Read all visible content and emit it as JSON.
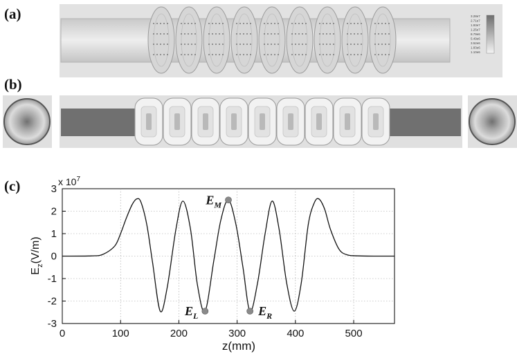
{
  "panels": {
    "a": {
      "label": "(a)",
      "legend_ticks": [
        "3.28e7",
        "2.71e7",
        "1.93e7",
        "1.25e7",
        "8.79e6",
        "5.49e6",
        "3.52e6",
        "1.83e6",
        "1.10e6"
      ]
    },
    "b": {
      "label": "(b)"
    },
    "c": {
      "label": "(c)"
    }
  },
  "chart_data": {
    "type": "line",
    "xlabel": "z(mm)",
    "ylabel": "E_z(V/m)",
    "y_multiplier": "x 10^7",
    "xlim": [
      0,
      570
    ],
    "ylim": [
      -3,
      3
    ],
    "xticks": [
      0,
      100,
      200,
      300,
      400,
      500
    ],
    "yticks": [
      3,
      2,
      1,
      0,
      -1,
      -2,
      -3
    ],
    "grid": true,
    "series": [
      {
        "x": [
          0,
          50,
          70,
          90,
          100,
          110,
          120,
          128,
          135,
          145,
          155,
          168,
          180,
          195,
          207,
          220,
          232,
          245,
          260,
          272,
          285,
          298,
          310,
          322,
          335,
          348,
          360,
          372,
          385,
          398,
          410,
          422,
          432,
          440,
          450,
          460,
          475,
          490,
          510,
          540,
          570
        ],
        "values": [
          0,
          0.01,
          0.08,
          0.45,
          1.0,
          1.7,
          2.3,
          2.55,
          2.4,
          1.4,
          -0.3,
          -2.45,
          -1.4,
          1.2,
          2.45,
          1.2,
          -1.3,
          -2.45,
          -0.2,
          1.6,
          2.5,
          1.4,
          -0.5,
          -2.45,
          -1.2,
          1.0,
          2.45,
          1.2,
          -1.2,
          -2.45,
          -1.2,
          1.4,
          2.35,
          2.55,
          2.1,
          1.2,
          0.3,
          0.05,
          0.01,
          0,
          0
        ]
      }
    ],
    "markers": [
      {
        "label": "E_L",
        "x": 245,
        "y": -2.45
      },
      {
        "label": "E_M",
        "x": 285,
        "y": 2.5
      },
      {
        "label": "E_R",
        "x": 322,
        "y": -2.45
      }
    ]
  }
}
